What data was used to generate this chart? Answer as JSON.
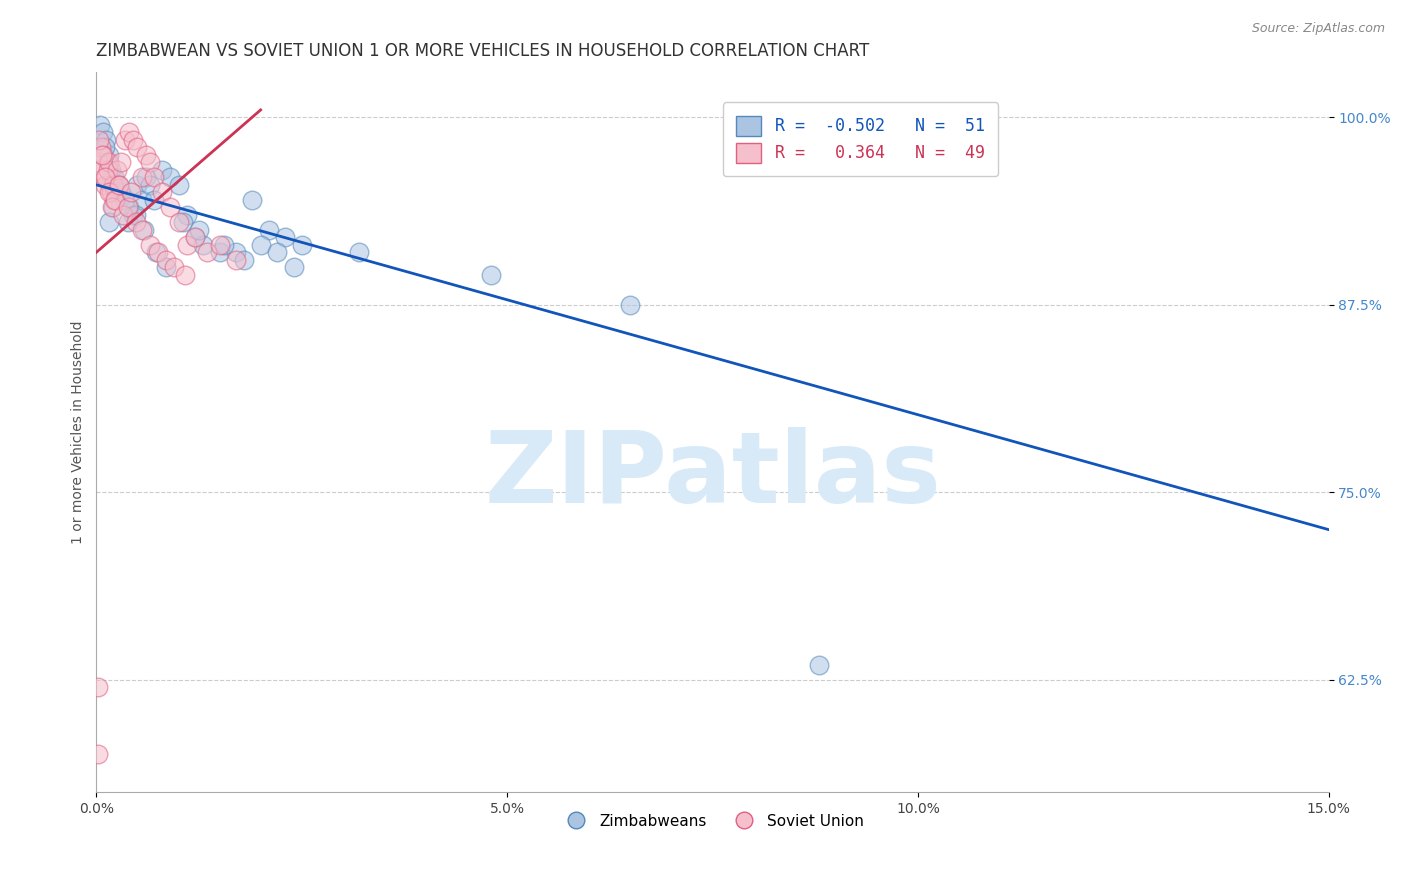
{
  "title": "ZIMBABWEAN VS SOVIET UNION 1 OR MORE VEHICLES IN HOUSEHOLD CORRELATION CHART",
  "source_text": "Source: ZipAtlas.com",
  "xlabel": "",
  "ylabel": "1 or more Vehicles in Household",
  "xlim": [
    0.0,
    15.0
  ],
  "ylim": [
    55.0,
    103.0
  ],
  "xtick_labels": [
    "0.0%",
    "5.0%",
    "10.0%",
    "15.0%"
  ],
  "xtick_values": [
    0.0,
    5.0,
    10.0,
    15.0
  ],
  "ytick_labels": [
    "62.5%",
    "75.0%",
    "87.5%",
    "100.0%"
  ],
  "ytick_values": [
    62.5,
    75.0,
    87.5,
    100.0
  ],
  "blue_color": "#aac4e2",
  "blue_edge_color": "#5588bb",
  "pink_color": "#f5bfcc",
  "pink_edge_color": "#e06080",
  "trend_blue_color": "#1155bb",
  "trend_pink_color": "#cc3355",
  "watermark_color": "#d8eaf8",
  "watermark_text": "ZIPatlas",
  "legend_R_blue": "-0.502",
  "legend_N_blue": "51",
  "legend_R_pink": "0.364",
  "legend_N_pink": "49",
  "legend_label_blue": "Zimbabweans",
  "legend_label_pink": "Soviet Union",
  "blue_x": [
    0.05,
    0.08,
    0.12,
    0.15,
    0.18,
    0.22,
    0.25,
    0.28,
    0.1,
    0.13,
    0.17,
    0.2,
    0.3,
    0.35,
    0.4,
    0.45,
    0.5,
    0.55,
    0.6,
    0.65,
    0.7,
    0.8,
    0.9,
    1.0,
    1.1,
    1.2,
    1.3,
    1.5,
    1.7,
    1.9,
    2.1,
    2.3,
    2.5,
    0.38,
    0.48,
    0.58,
    0.72,
    0.85,
    1.05,
    1.25,
    1.55,
    1.8,
    2.0,
    2.2,
    2.4,
    3.2,
    4.8,
    6.5,
    8.8,
    0.15,
    0.25
  ],
  "blue_y": [
    99.5,
    99.0,
    98.5,
    97.5,
    96.5,
    96.0,
    95.0,
    94.5,
    98.0,
    97.0,
    95.5,
    94.0,
    95.0,
    94.5,
    94.0,
    93.5,
    95.5,
    94.5,
    96.0,
    95.5,
    94.5,
    96.5,
    96.0,
    95.5,
    93.5,
    92.0,
    91.5,
    91.0,
    91.0,
    94.5,
    92.5,
    92.0,
    91.5,
    93.0,
    93.5,
    92.5,
    91.0,
    90.0,
    93.0,
    92.5,
    91.5,
    90.5,
    91.5,
    91.0,
    90.0,
    91.0,
    89.5,
    87.5,
    63.5,
    93.0,
    95.5
  ],
  "pink_x": [
    0.02,
    0.04,
    0.06,
    0.08,
    0.1,
    0.12,
    0.14,
    0.16,
    0.18,
    0.2,
    0.22,
    0.25,
    0.28,
    0.3,
    0.35,
    0.4,
    0.45,
    0.5,
    0.55,
    0.6,
    0.65,
    0.7,
    0.8,
    0.9,
    1.0,
    1.1,
    1.2,
    1.35,
    1.5,
    1.7,
    0.03,
    0.07,
    0.11,
    0.15,
    0.19,
    0.23,
    0.27,
    0.32,
    0.38,
    0.42,
    0.48,
    0.55,
    0.65,
    0.75,
    0.85,
    0.95,
    1.08,
    0.02,
    0.02
  ],
  "pink_y": [
    97.0,
    96.5,
    98.0,
    97.5,
    95.5,
    96.0,
    96.5,
    97.0,
    95.0,
    95.5,
    94.5,
    96.5,
    95.5,
    97.0,
    98.5,
    99.0,
    98.5,
    98.0,
    96.0,
    97.5,
    97.0,
    96.0,
    95.0,
    94.0,
    93.0,
    91.5,
    92.0,
    91.0,
    91.5,
    90.5,
    98.5,
    97.5,
    96.0,
    95.0,
    94.0,
    94.5,
    95.5,
    93.5,
    94.0,
    95.0,
    93.0,
    92.5,
    91.5,
    91.0,
    90.5,
    90.0,
    89.5,
    62.0,
    57.5
  ],
  "blue_trend_x": [
    0.0,
    15.0
  ],
  "blue_trend_y": [
    95.5,
    72.5
  ],
  "pink_trend_x": [
    0.0,
    2.0
  ],
  "pink_trend_y": [
    91.0,
    100.5
  ],
  "background_color": "#ffffff",
  "grid_color": "#cccccc",
  "title_fontsize": 12,
  "axis_label_fontsize": 10,
  "tick_fontsize": 10,
  "dot_size": 180,
  "dot_alpha": 0.55
}
